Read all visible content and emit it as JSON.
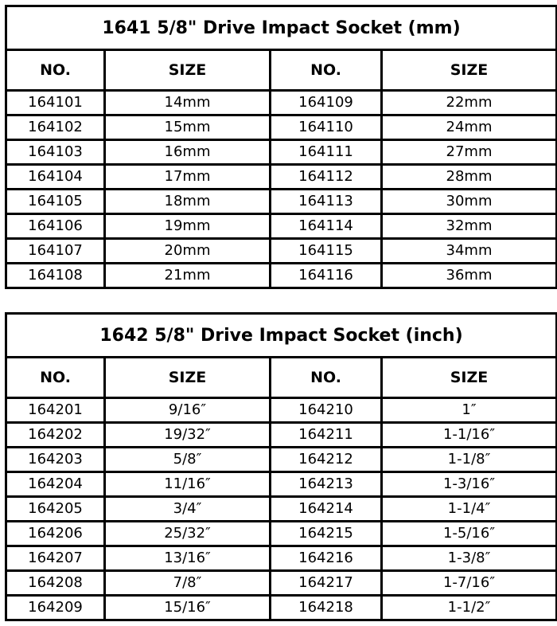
{
  "tables": [
    {
      "title": "1641  5/8\" Drive Impact Socket (mm)",
      "headers": [
        "NO.",
        "SIZE",
        "NO.",
        "SIZE"
      ],
      "rows": [
        [
          "164101",
          "14mm",
          "164109",
          "22mm"
        ],
        [
          "164102",
          "15mm",
          "164110",
          "24mm"
        ],
        [
          "164103",
          "16mm",
          "164111",
          "27mm"
        ],
        [
          "164104",
          "17mm",
          "164112",
          "28mm"
        ],
        [
          "164105",
          "18mm",
          "164113",
          "30mm"
        ],
        [
          "164106",
          "19mm",
          "164114",
          "32mm"
        ],
        [
          "164107",
          "20mm",
          "164115",
          "34mm"
        ],
        [
          "164108",
          "21mm",
          "164116",
          "36mm"
        ]
      ]
    },
    {
      "title": "1642  5/8\" Drive Impact Socket (inch)",
      "headers": [
        "NO.",
        "SIZE",
        "NO.",
        "SIZE"
      ],
      "rows": [
        [
          "164201",
          "9/16″",
          "164210",
          "1″"
        ],
        [
          "164202",
          "19/32″",
          "164211",
          "1-1/16″"
        ],
        [
          "164203",
          "5/8″",
          "164212",
          "1-1/8″"
        ],
        [
          "164204",
          "11/16″",
          "164213",
          "1-3/16″"
        ],
        [
          "164205",
          "3/4″",
          "164214",
          "1-1/4″"
        ],
        [
          "164206",
          "25/32″",
          "164215",
          "1-5/16″"
        ],
        [
          "164207",
          "13/16″",
          "164216",
          "1-3/8″"
        ],
        [
          "164208",
          "7/8″",
          "164217",
          "1-7/16″"
        ],
        [
          "164209",
          "15/16″",
          "164218",
          "1-1/2″"
        ]
      ]
    }
  ]
}
